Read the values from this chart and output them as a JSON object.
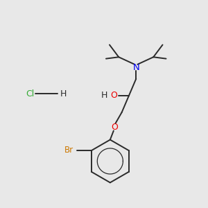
{
  "background_color": "#e8e8e8",
  "bond_color": "#2a2a2a",
  "N_color": "#0000ee",
  "O_color": "#ee0000",
  "Br_color": "#cc7700",
  "Cl_color": "#33aa33",
  "H_color": "#2a2a2a",
  "figsize": [
    3.0,
    3.0
  ],
  "dpi": 100,
  "xlim": [
    0,
    10
  ],
  "ylim": [
    0,
    10
  ]
}
